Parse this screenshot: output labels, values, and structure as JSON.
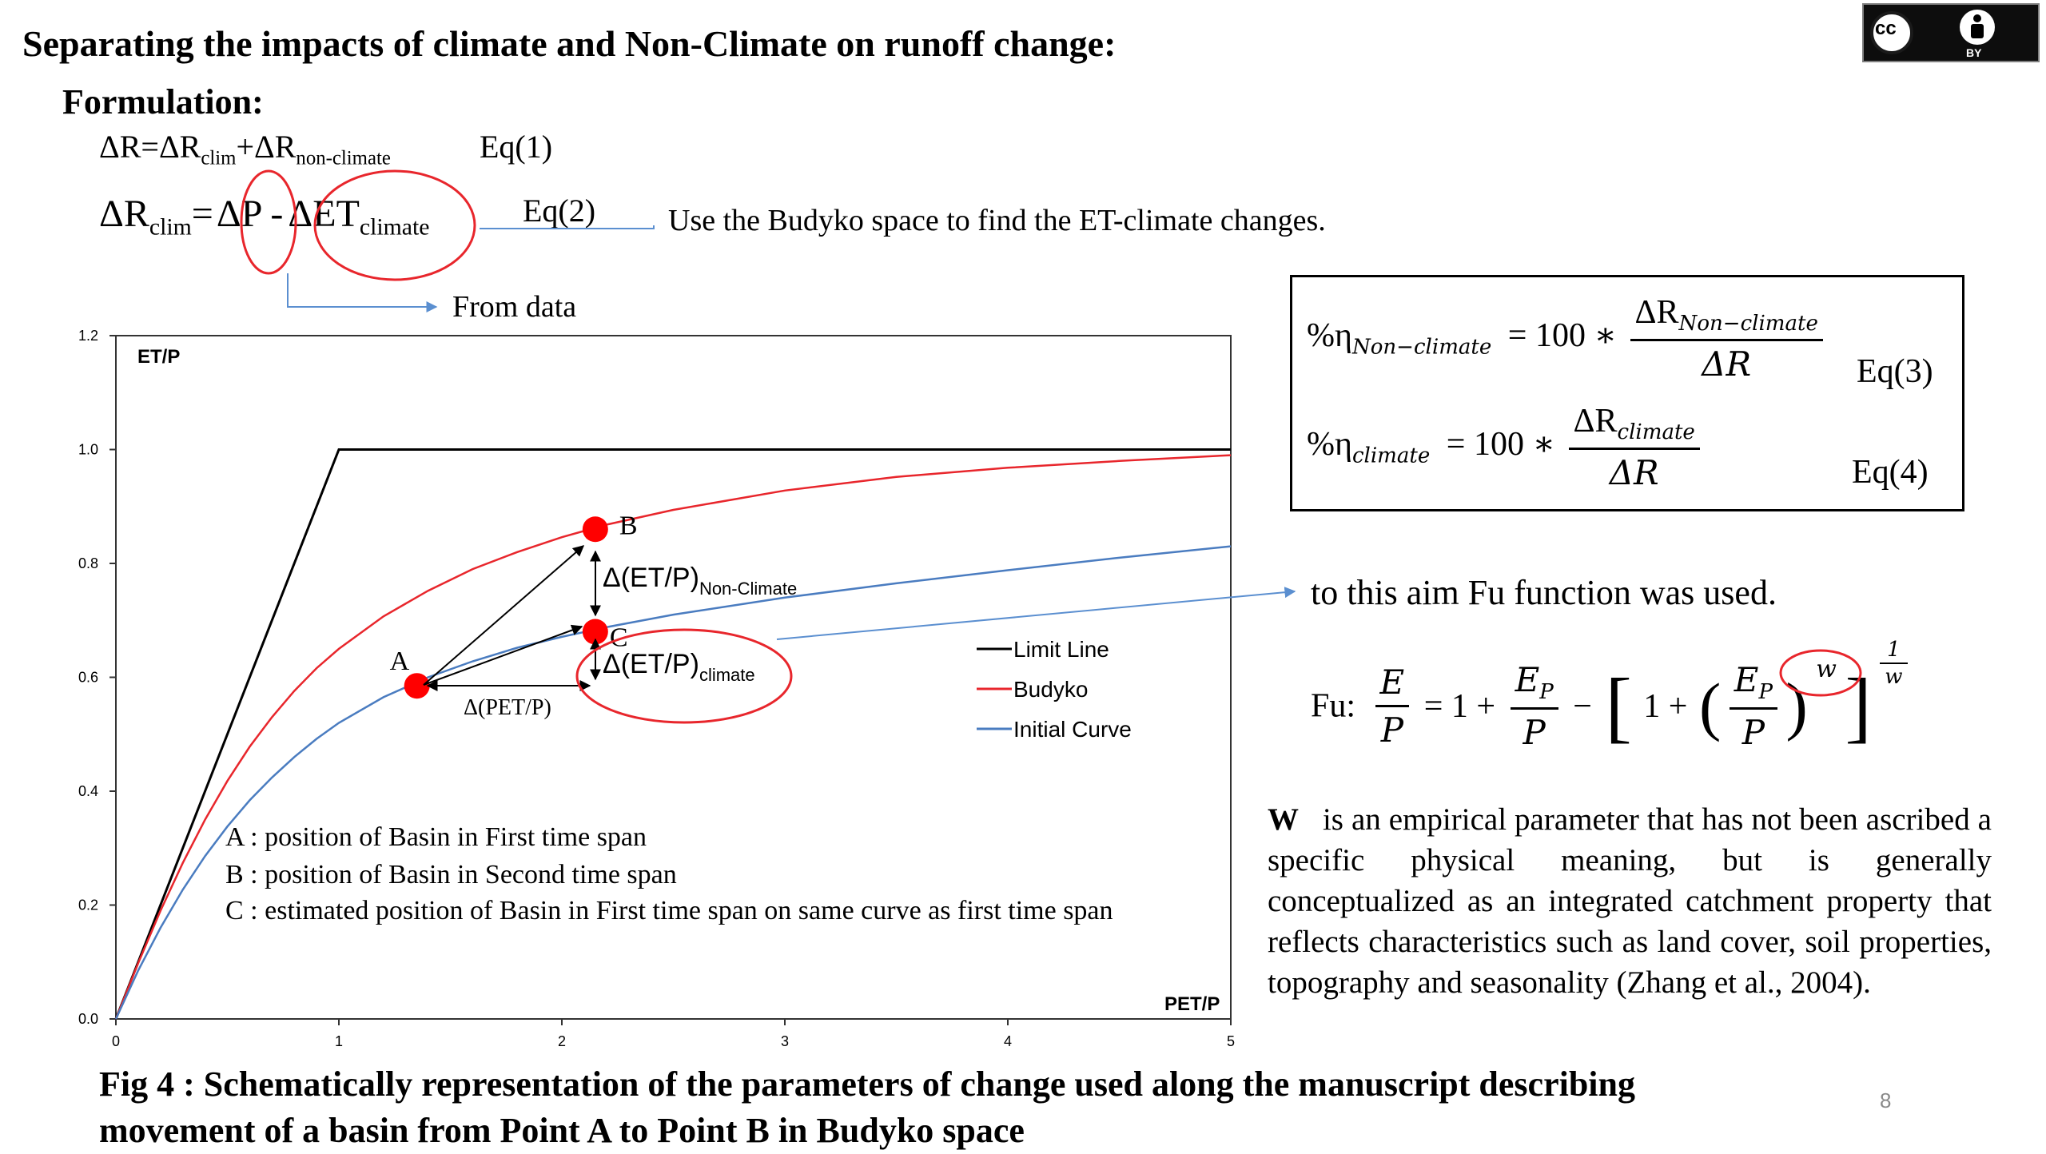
{
  "title": "Separating the impacts of climate and Non-Climate on runoff change:",
  "formulation_heading": "Formulation:",
  "eq1": {
    "lhs": "ΔR=ΔR",
    "sub1": "clim",
    "plus": "+ΔR",
    "sub2": "non-climate",
    "tag": "Eq(1)"
  },
  "eq2": {
    "lhs": "ΔR",
    "sub1": "clim",
    "eq": "=",
    "dp": "ΔP",
    "minus": "-",
    "det": "ΔET",
    "sub2": "climate",
    "tag": "Eq(2)"
  },
  "notes": {
    "budyko": "Use the Budyko space to find the ET-climate changes.",
    "from_data": "From data",
    "fu_used": "to this aim Fu function was used."
  },
  "eq3": {
    "lhs_prefix": "%η",
    "lhs_sub": "Non−climate",
    "rhs": "= 100 ∗",
    "num": "ΔR",
    "num_sub": "Non−climate",
    "den": "ΔR",
    "tag": "Eq(3)"
  },
  "eq4": {
    "lhs_prefix": "%η",
    "lhs_sub": "climate",
    "rhs": "= 100 ∗",
    "num": "ΔR",
    "num_sub": "climate",
    "den": "ΔR",
    "tag": "Eq(4)"
  },
  "fu": {
    "label": "Fu:",
    "e": "E",
    "p": "P",
    "eq_one_plus": "= 1 +",
    "ep": "E",
    "ep_sub": "P",
    "minus": "−",
    "one_plus": "1 +",
    "w": "w",
    "one": "1"
  },
  "w_paragraph": {
    "lead": "W",
    "text": "is an empirical parameter that has not been ascribed a specific physical meaning, but is generally conceptualized as an integrated catchment property that reflects characteristics such as land cover, soil properties, topography and seasonality (Zhang et al., 2004)."
  },
  "caption": {
    "line1": "Fig 4 : Schematically representation of the parameters of change used along the manuscript describing",
    "line2": "movement of a basin from Point A to Point B in Budyko space"
  },
  "page_number": "8",
  "license_badge": {
    "cc": "cc",
    "by": "BY"
  },
  "colors": {
    "limit_line": "#000000",
    "budyko": "#e8262c",
    "initial": "#4a7cc0",
    "point": "#ff0000",
    "arrow_blue": "#6a9bd6"
  },
  "chart_data": {
    "type": "line",
    "ylabel": "ET/P",
    "xlabel": "PET/P",
    "xlim": [
      0,
      5
    ],
    "ylim": [
      0,
      1.2
    ],
    "x_ticks": [
      "0",
      "1",
      "2",
      "3",
      "4",
      "5"
    ],
    "y_ticks": [
      "0.0",
      "0.2",
      "0.4",
      "0.6",
      "0.8",
      "1.0",
      "1.2"
    ],
    "grid": false,
    "legend_position": "right",
    "series": [
      {
        "name": "Limit Line",
        "x": [
          0,
          1,
          5
        ],
        "y": [
          0,
          1,
          1
        ]
      },
      {
        "name": "Budyko",
        "x": [
          0,
          0.1,
          0.2,
          0.3,
          0.4,
          0.5,
          0.6,
          0.7,
          0.8,
          0.9,
          1.0,
          1.2,
          1.4,
          1.6,
          1.8,
          2.0,
          2.2,
          2.5,
          3.0,
          3.5,
          4.0,
          4.5,
          5.0
        ],
        "y": [
          0,
          0.098,
          0.19,
          0.274,
          0.35,
          0.418,
          0.478,
          0.53,
          0.576,
          0.616,
          0.65,
          0.707,
          0.752,
          0.79,
          0.82,
          0.846,
          0.868,
          0.894,
          0.928,
          0.952,
          0.968,
          0.98,
          0.99
        ]
      },
      {
        "name": "Initial Curve",
        "x": [
          0,
          0.1,
          0.2,
          0.3,
          0.4,
          0.5,
          0.6,
          0.7,
          0.8,
          0.9,
          1.0,
          1.2,
          1.4,
          1.6,
          1.8,
          2.0,
          2.2,
          2.5,
          3.0,
          3.5,
          4.0,
          4.5,
          5.0
        ],
        "y": [
          0,
          0.085,
          0.16,
          0.227,
          0.286,
          0.338,
          0.384,
          0.424,
          0.46,
          0.492,
          0.52,
          0.565,
          0.6,
          0.628,
          0.652,
          0.671,
          0.688,
          0.71,
          0.74,
          0.765,
          0.788,
          0.81,
          0.83
        ]
      }
    ],
    "points": [
      {
        "label": "A",
        "x": 1.35,
        "y": 0.585
      },
      {
        "label": "B",
        "x": 2.15,
        "y": 0.86
      },
      {
        "label": "C",
        "x": 2.15,
        "y": 0.68
      }
    ],
    "annotations": {
      "delta_nonclimate": "Δ(ET/P)",
      "delta_nonclimate_sub": "Non-Climate",
      "delta_climate": "Δ(ET/P)",
      "delta_climate_sub": "climate",
      "delta_pet": "Δ(PET/P)"
    },
    "legend": [
      "Limit Line",
      "Budyko",
      "Initial Curve"
    ],
    "point_notes": [
      "A : position of Basin in First time span",
      "B : position of Basin in Second time span",
      "C : estimated position of Basin in First time span on same curve as first time span"
    ]
  }
}
